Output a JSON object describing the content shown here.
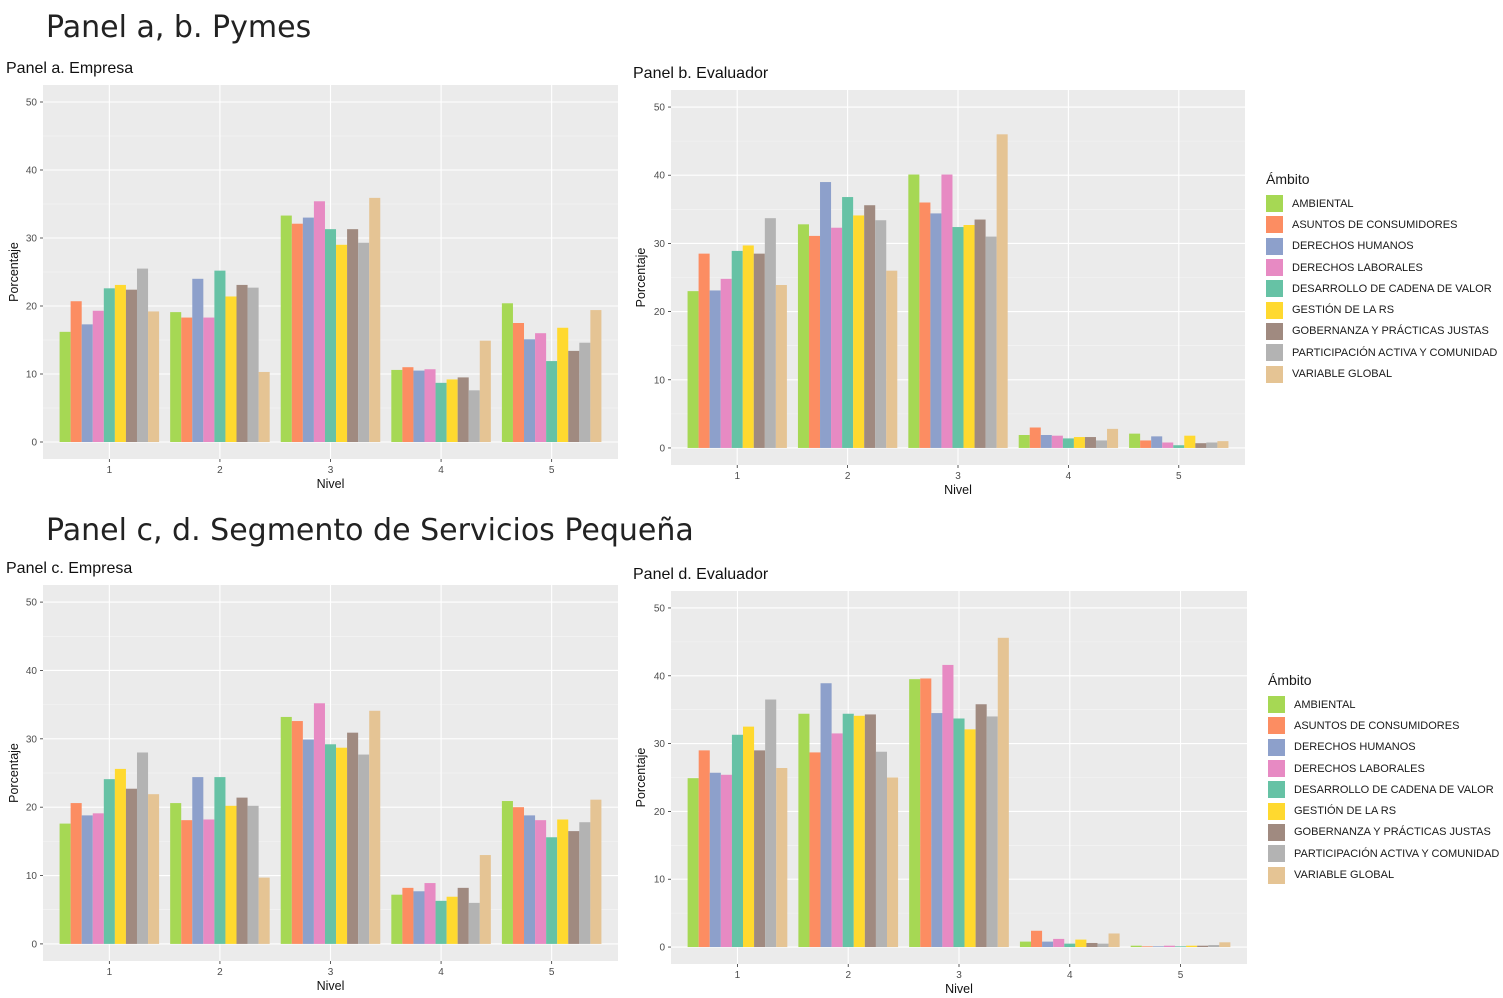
{
  "headings": {
    "top": "Panel a, b. Pymes",
    "bottom": "Panel c, d. Segmento de Servicios Pequeña"
  },
  "legend": {
    "title": "Ámbito",
    "items": [
      {
        "label": "AMBIENTAL",
        "color": "#a6d854"
      },
      {
        "label": "ASUNTOS DE CONSUMIDORES",
        "color": "#fc8d62"
      },
      {
        "label": "DERECHOS HUMANOS",
        "color": "#8da0cb"
      },
      {
        "label": "DERECHOS LABORALES",
        "color": "#e78ac3"
      },
      {
        "label": "DESARROLLO DE CADENA DE VALOR",
        "color": "#66c2a5"
      },
      {
        "label": "GESTIÓN DE LA RS",
        "color": "#ffd92f"
      },
      {
        "label": "GOBERNANZA Y PRÁCTICAS JUSTAS",
        "color": "#a08a80"
      },
      {
        "label": "PARTICIPACIÓN ACTIVA Y COMUNIDAD",
        "color": "#b3b3b3"
      },
      {
        "label": "VARIABLE GLOBAL",
        "color": "#e5c494"
      }
    ]
  },
  "chart_data": [
    {
      "type": "bar",
      "title": "Panel a. Empresa",
      "xlabel": "Nivel",
      "ylabel": "Porcentaje",
      "ylim": [
        0,
        50
      ],
      "yticks": [
        "0",
        "10",
        "20",
        "30",
        "40",
        "50"
      ],
      "categories": [
        "1",
        "2",
        "3",
        "4",
        "5"
      ],
      "grid": true,
      "legend": "none",
      "series": [
        {
          "name": "AMBIENTAL",
          "values": [
            16.2,
            19.1,
            33.3,
            10.6,
            20.4
          ]
        },
        {
          "name": "ASUNTOS DE CONSUMIDORES",
          "values": [
            20.7,
            18.3,
            32.1,
            11.0,
            17.5
          ]
        },
        {
          "name": "DERECHOS HUMANOS",
          "values": [
            17.3,
            24.0,
            33.0,
            10.5,
            15.1
          ]
        },
        {
          "name": "DERECHOS LABORALES",
          "values": [
            19.3,
            18.3,
            35.4,
            10.7,
            16.0
          ]
        },
        {
          "name": "DESARROLLO DE CADENA DE VALOR",
          "values": [
            22.6,
            25.2,
            31.3,
            8.7,
            11.9
          ]
        },
        {
          "name": "GESTIÓN DE LA RS",
          "values": [
            23.1,
            21.4,
            29.0,
            9.2,
            16.8
          ]
        },
        {
          "name": "GOBERNANZA Y PRÁCTICAS JUSTAS",
          "values": [
            22.4,
            23.1,
            31.3,
            9.5,
            13.4
          ]
        },
        {
          "name": "PARTICIPACIÓN ACTIVA Y COMUNIDAD",
          "values": [
            25.5,
            22.7,
            29.3,
            7.6,
            14.6
          ]
        },
        {
          "name": "VARIABLE GLOBAL",
          "values": [
            19.2,
            10.3,
            35.9,
            14.9,
            19.4
          ]
        }
      ]
    },
    {
      "type": "bar",
      "title": "Panel b. Evaluador",
      "xlabel": "Nivel",
      "ylabel": "Porcentaje",
      "ylim": [
        0,
        50
      ],
      "yticks": [
        "0",
        "10",
        "20",
        "30",
        "40",
        "50"
      ],
      "categories": [
        "1",
        "2",
        "3",
        "4",
        "5"
      ],
      "grid": true,
      "legend": "right",
      "series": [
        {
          "name": "AMBIENTAL",
          "values": [
            23.0,
            32.8,
            40.1,
            1.9,
            2.1
          ]
        },
        {
          "name": "ASUNTOS DE CONSUMIDORES",
          "values": [
            28.5,
            31.1,
            36.0,
            3.0,
            1.1
          ]
        },
        {
          "name": "DERECHOS HUMANOS",
          "values": [
            23.1,
            39.0,
            34.4,
            1.9,
            1.7
          ]
        },
        {
          "name": "DERECHOS LABORALES",
          "values": [
            24.8,
            32.3,
            40.1,
            1.8,
            0.8
          ]
        },
        {
          "name": "DESARROLLO DE CADENA DE VALOR",
          "values": [
            28.9,
            36.8,
            32.4,
            1.4,
            0.4
          ]
        },
        {
          "name": "GESTIÓN DE LA RS",
          "values": [
            29.7,
            34.1,
            32.7,
            1.6,
            1.8
          ]
        },
        {
          "name": "GOBERNANZA Y PRÁCTICAS JUSTAS",
          "values": [
            28.5,
            35.6,
            33.5,
            1.6,
            0.7
          ]
        },
        {
          "name": "PARTICIPACIÓN ACTIVA Y COMUNIDAD",
          "values": [
            33.7,
            33.4,
            31.0,
            1.1,
            0.8
          ]
        },
        {
          "name": "VARIABLE GLOBAL",
          "values": [
            23.9,
            26.0,
            46.0,
            2.8,
            1.0
          ]
        }
      ]
    },
    {
      "type": "bar",
      "title": "Panel c. Empresa",
      "xlabel": "Nivel",
      "ylabel": "Porcentaje",
      "ylim": [
        0,
        50
      ],
      "yticks": [
        "0",
        "10",
        "20",
        "30",
        "40",
        "50"
      ],
      "categories": [
        "1",
        "2",
        "3",
        "4",
        "5"
      ],
      "grid": true,
      "legend": "none",
      "series": [
        {
          "name": "AMBIENTAL",
          "values": [
            17.6,
            20.6,
            33.2,
            7.2,
            20.9
          ]
        },
        {
          "name": "ASUNTOS DE CONSUMIDORES",
          "values": [
            20.6,
            18.1,
            32.6,
            8.2,
            20.0
          ]
        },
        {
          "name": "DERECHOS HUMANOS",
          "values": [
            18.8,
            24.4,
            29.9,
            7.7,
            18.8
          ]
        },
        {
          "name": "DERECHOS LABORALES",
          "values": [
            19.1,
            18.2,
            35.2,
            8.9,
            18.1
          ]
        },
        {
          "name": "DESARROLLO DE CADENA DE VALOR",
          "values": [
            24.1,
            24.4,
            29.2,
            6.3,
            15.6
          ]
        },
        {
          "name": "GESTIÓN DE LA RS",
          "values": [
            25.6,
            20.2,
            28.7,
            6.9,
            18.2
          ]
        },
        {
          "name": "GOBERNANZA Y PRÁCTICAS JUSTAS",
          "values": [
            22.7,
            21.4,
            30.9,
            8.2,
            16.5
          ]
        },
        {
          "name": "PARTICIPACIÓN ACTIVA Y COMUNIDAD",
          "values": [
            28.0,
            20.2,
            27.7,
            6.0,
            17.8
          ]
        },
        {
          "name": "VARIABLE GLOBAL",
          "values": [
            21.9,
            9.7,
            34.1,
            13.0,
            21.1
          ]
        }
      ]
    },
    {
      "type": "bar",
      "title": "Panel d. Evaluador",
      "xlabel": "Nivel",
      "ylabel": "Porcentaje",
      "ylim": [
        0,
        50
      ],
      "yticks": [
        "0",
        "10",
        "20",
        "30",
        "40",
        "50"
      ],
      "categories": [
        "1",
        "2",
        "3",
        "4",
        "5"
      ],
      "grid": true,
      "legend": "right",
      "series": [
        {
          "name": "AMBIENTAL",
          "values": [
            24.9,
            34.4,
            39.5,
            0.8,
            0.2
          ]
        },
        {
          "name": "ASUNTOS DE CONSUMIDORES",
          "values": [
            29.0,
            28.7,
            39.6,
            2.4,
            0.1
          ]
        },
        {
          "name": "DERECHOS HUMANOS",
          "values": [
            25.7,
            38.9,
            34.5,
            0.8,
            0.1
          ]
        },
        {
          "name": "DERECHOS LABORALES",
          "values": [
            25.4,
            31.5,
            41.6,
            1.2,
            0.2
          ]
        },
        {
          "name": "DESARROLLO DE CADENA DE VALOR",
          "values": [
            31.3,
            34.4,
            33.7,
            0.5,
            0.1
          ]
        },
        {
          "name": "GESTIÓN DE LA RS",
          "values": [
            32.5,
            34.1,
            32.1,
            1.1,
            0.2
          ]
        },
        {
          "name": "GOBERNANZA Y PRÁCTICAS JUSTAS",
          "values": [
            29.0,
            34.3,
            35.8,
            0.6,
            0.2
          ]
        },
        {
          "name": "PARTICIPACIÓN ACTIVA Y COMUNIDAD",
          "values": [
            36.5,
            28.8,
            34.0,
            0.5,
            0.3
          ]
        },
        {
          "name": "VARIABLE GLOBAL",
          "values": [
            26.4,
            25.0,
            45.6,
            2.0,
            0.7
          ]
        }
      ]
    }
  ]
}
